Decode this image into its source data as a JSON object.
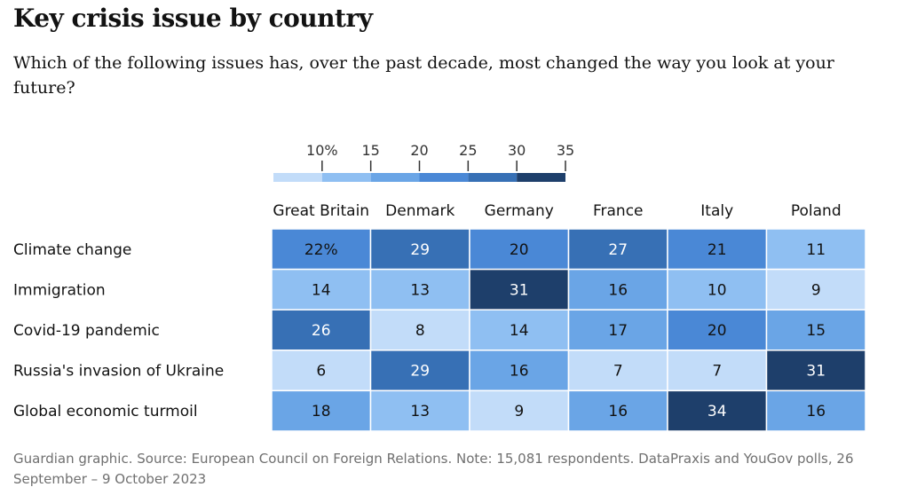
{
  "title": "Key crisis issue by country",
  "subtitle": "Which of the following issues has, over the past decade, most changed the way you look at your future?",
  "footer": "Guardian graphic. Source: European Council on Foreign Relations. Note: 15,081 respondents. DataPraxis and YouGov polls, 26 September – 9 October 2023",
  "chart_data": {
    "type": "heatmap",
    "columns": [
      "Great Britain",
      "Denmark",
      "Germany",
      "France",
      "Italy",
      "Poland"
    ],
    "rows": [
      "Climate change",
      "Immigration",
      "Covid-19 pandemic",
      "Russia's invasion of Ukraine",
      "Global economic turmoil"
    ],
    "values": [
      [
        22,
        29,
        20,
        27,
        21,
        11
      ],
      [
        14,
        13,
        31,
        16,
        10,
        9
      ],
      [
        26,
        8,
        14,
        17,
        20,
        15
      ],
      [
        6,
        29,
        16,
        7,
        7,
        31
      ],
      [
        18,
        13,
        9,
        16,
        34,
        16
      ]
    ],
    "cell_labels": [
      [
        "22%",
        "29",
        "20",
        "27",
        "21",
        "11"
      ],
      [
        "14",
        "13",
        "31",
        "16",
        "10",
        "9"
      ],
      [
        "26",
        "8",
        "14",
        "17",
        "20",
        "15"
      ],
      [
        "6",
        "29",
        "16",
        "7",
        "7",
        "31"
      ],
      [
        "18",
        "13",
        "9",
        "16",
        "34",
        "16"
      ]
    ],
    "legend": {
      "tick_labels": [
        "10%",
        "15",
        "20",
        "25",
        "30",
        "35"
      ],
      "thresholds": [
        10,
        15,
        20,
        25,
        30,
        35
      ],
      "colors": [
        "#c2dcf9",
        "#8fbff2",
        "#6aa5e6",
        "#4a88d6",
        "#3770b5",
        "#1e3f6b"
      ]
    },
    "text_colors": {
      "light_cell": "#121212",
      "dark_cell": "#ffffff"
    }
  }
}
